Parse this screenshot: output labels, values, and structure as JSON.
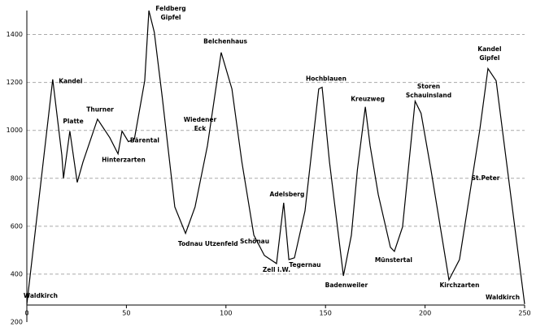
{
  "chart_data": {
    "type": "line",
    "x": [
      0,
      13,
      17.6,
      18.4,
      21.6,
      25.3,
      28.2,
      35.5,
      41.7,
      45.8,
      47.8,
      51,
      54,
      59.2,
      61.3,
      64,
      68,
      74.3,
      79.7,
      84.5,
      90.7,
      97.6,
      103,
      108,
      114,
      119.3,
      125.4,
      129,
      131.6,
      134.4,
      139.7,
      146.6,
      148.3,
      152,
      159,
      163,
      166,
      170,
      172.4,
      176.5,
      182.6,
      184.6,
      188.7,
      195,
      198,
      203,
      212,
      217.3,
      227.5,
      231.6,
      235.7,
      250
    ],
    "series": [
      {
        "color": "#000000",
        "values": [
          274,
          1213,
          895,
          800,
          997,
          783,
          868,
          1047,
          969,
          902,
          997,
          953,
          963,
          1207,
          1500,
          1410,
          1139,
          681,
          570,
          681,
          936,
          1325,
          1173,
          868,
          563,
          478,
          444,
          698,
          461,
          468,
          664,
          1173,
          1180,
          868,
          393,
          563,
          834,
          1098,
          936,
          732,
          512,
          495,
          597,
          1122,
          1071,
          834,
          376,
          461,
          1003,
          1258,
          1207,
          275
        ]
      }
    ],
    "xlim": [
      0,
      250
    ],
    "xticks": [
      0,
      50,
      100,
      150,
      200,
      250
    ],
    "ylim": [
      200,
      1500
    ],
    "yticks": [
      200,
      400,
      600,
      800,
      1000,
      1200,
      1400
    ],
    "grid": true,
    "annotations": [
      {
        "lines": [
          "Waldkirch"
        ],
        "x": 6.9,
        "y": 308
      },
      {
        "lines": [
          "Kandel"
        ],
        "x": 22,
        "y": 1203
      },
      {
        "lines": [
          "Platte"
        ],
        "x": 23.3,
        "y": 1037
      },
      {
        "lines": [
          "Thurner"
        ],
        "x": 36.8,
        "y": 1085
      },
      {
        "lines": [
          "Hinterzarten"
        ],
        "x": 48.6,
        "y": 875
      },
      {
        "lines": [
          "Bärental"
        ],
        "x": 59.2,
        "y": 956
      },
      {
        "lines": [
          "Feldberg",
          "Gipfel"
        ],
        "x": 72.3,
        "y": 1488
      },
      {
        "lines": [
          "Wiedener",
          "Eck"
        ],
        "x": 87,
        "y": 1024
      },
      {
        "lines": [
          "Belchenhaus"
        ],
        "x": 99.7,
        "y": 1370
      },
      {
        "lines": [
          "Todnau Utzenfeld"
        ],
        "x": 91,
        "y": 525
      },
      {
        "lines": [
          "Schönau"
        ],
        "x": 114.4,
        "y": 536
      },
      {
        "lines": [
          "Adelsberg"
        ],
        "x": 130.7,
        "y": 732
      },
      {
        "lines": [
          "Zell i.W."
        ],
        "x": 125.4,
        "y": 417
      },
      {
        "lines": [
          "Tegernau"
        ],
        "x": 139.7,
        "y": 437
      },
      {
        "lines": [
          "Hochblauen"
        ],
        "x": 150.3,
        "y": 1214
      },
      {
        "lines": [
          "Badenweiler"
        ],
        "x": 160.5,
        "y": 353
      },
      {
        "lines": [
          "Kreuzweg"
        ],
        "x": 171.2,
        "y": 1129
      },
      {
        "lines": [
          "Münstertal"
        ],
        "x": 184.2,
        "y": 458
      },
      {
        "lines": [
          "Storen",
          "Schauinsland"
        ],
        "x": 201.8,
        "y": 1163
      },
      {
        "lines": [
          "Kirchzarten"
        ],
        "x": 217.3,
        "y": 353
      },
      {
        "lines": [
          "St.Peter"
        ],
        "x": 230.4,
        "y": 800
      },
      {
        "lines": [
          "Kandel",
          "Gipfel"
        ],
        "x": 232.4,
        "y": 1319
      },
      {
        "lines": [
          "Waldkirch"
        ],
        "x": 239,
        "y": 302
      }
    ]
  }
}
